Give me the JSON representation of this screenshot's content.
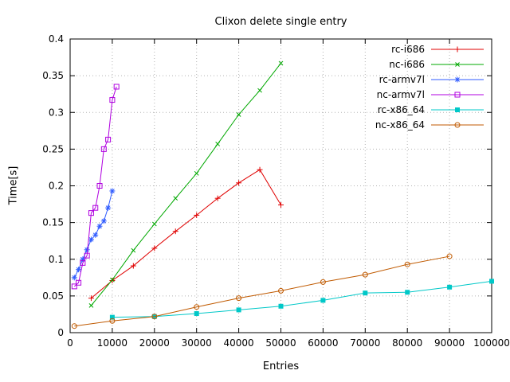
{
  "chart_data": {
    "type": "line",
    "title": "Clixon delete single entry",
    "xlabel": "Entries",
    "ylabel": "Time[s]",
    "xlim": [
      0,
      100000
    ],
    "ylim": [
      0,
      0.4
    ],
    "xtick_step": 10000,
    "ytick_step": 0.05,
    "grid": true,
    "legend_position": "top-right-inside",
    "series": [
      {
        "name": "rc-i686",
        "color": "#e00000",
        "marker": "plus",
        "x": [
          5000,
          10000,
          15000,
          20000,
          25000,
          30000,
          35000,
          40000,
          45000,
          50000
        ],
        "y": [
          0.047,
          0.071,
          0.091,
          0.115,
          0.138,
          0.16,
          0.183,
          0.204,
          0.222,
          0.174
        ]
      },
      {
        "name": "nc-i686",
        "color": "#00a800",
        "marker": "cross",
        "x": [
          5000,
          10000,
          15000,
          20000,
          25000,
          30000,
          35000,
          40000,
          45000,
          50000
        ],
        "y": [
          0.037,
          0.072,
          0.112,
          0.148,
          0.183,
          0.217,
          0.257,
          0.297,
          0.33,
          0.367
        ]
      },
      {
        "name": "rc-armv7l",
        "color": "#2f5bff",
        "marker": "asterisk",
        "x": [
          1000,
          2000,
          3000,
          4000,
          5000,
          6000,
          7000,
          8000,
          9000,
          10000
        ],
        "y": [
          0.075,
          0.086,
          0.1,
          0.113,
          0.127,
          0.133,
          0.145,
          0.152,
          0.17,
          0.193
        ]
      },
      {
        "name": "nc-armv7l",
        "color": "#b000e0",
        "marker": "square-open",
        "x": [
          1000,
          2000,
          3000,
          4000,
          5000,
          6000,
          7000,
          8000,
          9000,
          10000,
          11000
        ],
        "y": [
          0.063,
          0.068,
          0.095,
          0.105,
          0.163,
          0.17,
          0.2,
          0.25,
          0.263,
          0.317,
          0.335
        ]
      },
      {
        "name": "rc-x86_64",
        "color": "#00c8c8",
        "marker": "square-filled",
        "x": [
          10000,
          20000,
          30000,
          40000,
          50000,
          60000,
          70000,
          80000,
          90000,
          100000
        ],
        "y": [
          0.021,
          0.022,
          0.026,
          0.031,
          0.036,
          0.044,
          0.054,
          0.055,
          0.062,
          0.07
        ]
      },
      {
        "name": "nc-x86_64",
        "color": "#c05a00",
        "marker": "circle-open",
        "x": [
          1000,
          10000,
          20000,
          30000,
          40000,
          50000,
          60000,
          70000,
          80000,
          90000
        ],
        "y": [
          0.009,
          0.016,
          0.022,
          0.035,
          0.047,
          0.057,
          0.069,
          0.079,
          0.093,
          0.104
        ]
      }
    ]
  }
}
